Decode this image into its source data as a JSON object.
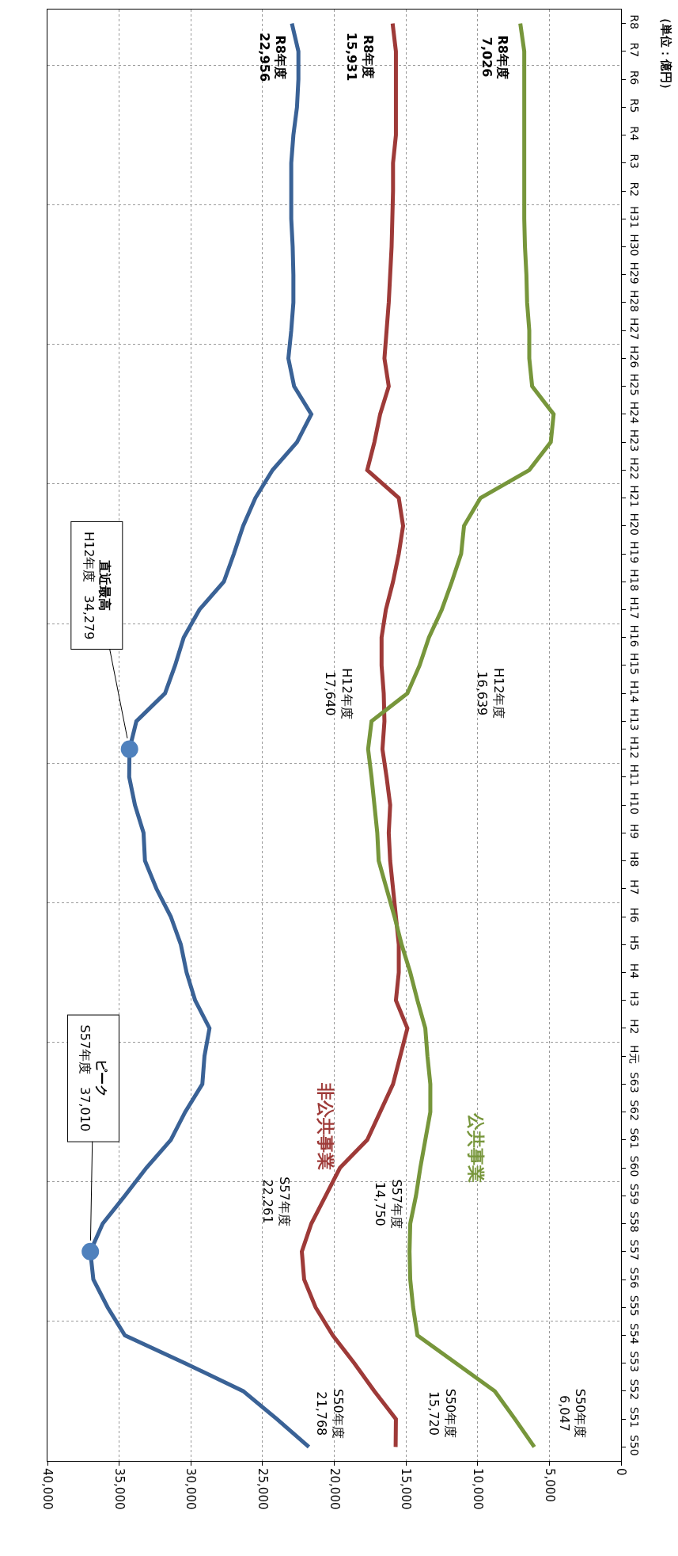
{
  "chart_data": {
    "type": "line",
    "orientation": "horizontal",
    "title": "（単位：億円）",
    "categories": [
      "R8",
      "R7",
      "R6",
      "R5",
      "R4",
      "R3",
      "R2",
      "H31",
      "H30",
      "H29",
      "H28",
      "H27",
      "H26",
      "H25",
      "H24",
      "H23",
      "H22",
      "H21",
      "H20",
      "H19",
      "H18",
      "H17",
      "H16",
      "H15",
      "H14",
      "H13",
      "H12",
      "H11",
      "H10",
      "H9",
      "H8",
      "H7",
      "H6",
      "H5",
      "H4",
      "H3",
      "H2",
      "H元",
      "S63",
      "S62",
      "S61",
      "S60",
      "S59",
      "S58",
      "S57",
      "S56",
      "S55",
      "S54",
      "S53",
      "S52",
      "S51",
      "S50"
    ],
    "xlim": [
      40000,
      0
    ],
    "xticks": [
      {
        "value": 40000,
        "label": "40,000"
      },
      {
        "value": 35000,
        "label": "35,000"
      },
      {
        "value": 30000,
        "label": "30,000"
      },
      {
        "value": 25000,
        "label": "25,000"
      },
      {
        "value": 20000,
        "label": "20,000"
      },
      {
        "value": 15000,
        "label": "15,000"
      },
      {
        "value": 10000,
        "label": "10,000"
      },
      {
        "value": 5000,
        "label": "5,000"
      },
      0
    ],
    "series": [
      {
        "color": "#3a6296",
        "values": [
          22956,
          22500,
          22500,
          22600,
          22850,
          23000,
          23000,
          23000,
          22900,
          22850,
          22850,
          23000,
          23200,
          22800,
          21600,
          22600,
          24300,
          25500,
          26350,
          27000,
          27700,
          29400,
          30500,
          31100,
          31800,
          33800,
          34279,
          34300,
          33900,
          33300,
          33200,
          32400,
          31400,
          30700,
          30300,
          29700,
          28700,
          29050,
          29200,
          30400,
          31400,
          33100,
          34600,
          36150,
          37010,
          36800,
          35800,
          34600,
          30400,
          26350,
          24000,
          21768
        ]
      },
      {
        "name": "非公共事業",
        "color": "#9e3a38",
        "values": [
          15931,
          15700,
          15700,
          15700,
          15700,
          15900,
          15900,
          15950,
          16000,
          16100,
          16200,
          16350,
          16500,
          16200,
          16800,
          17200,
          17700,
          15500,
          15200,
          15500,
          15900,
          16400,
          16700,
          16700,
          16550,
          16500,
          16639,
          16350,
          16100,
          16200,
          16100,
          15900,
          15700,
          15500,
          15500,
          15700,
          14900,
          15400,
          15900,
          16800,
          17700,
          19600,
          20600,
          21600,
          22261,
          22100,
          21300,
          20100,
          18600,
          17200,
          15700,
          15720
        ]
      },
      {
        "name": "公共事業",
        "color": "#77963b",
        "values": [
          7026,
          6750,
          6750,
          6750,
          6750,
          6750,
          6750,
          6750,
          6700,
          6600,
          6550,
          6400,
          6400,
          6200,
          4700,
          4900,
          6400,
          9800,
          10950,
          11150,
          11800,
          12500,
          13400,
          14050,
          14900,
          17400,
          17640,
          17400,
          17200,
          17000,
          16900,
          16350,
          15800,
          15300,
          14700,
          14200,
          13650,
          13500,
          13300,
          13300,
          13650,
          14000,
          14300,
          14700,
          14750,
          14700,
          14500,
          14200,
          11500,
          8800,
          7400,
          6047
        ]
      },
      {
        "type": "scatter",
        "marker": "circle",
        "color": "#4f81bd",
        "values": [
          null,
          null,
          null,
          null,
          null,
          null,
          null,
          null,
          null,
          null,
          null,
          null,
          null,
          null,
          null,
          null,
          null,
          null,
          null,
          null,
          null,
          null,
          null,
          null,
          null,
          null,
          34279,
          null,
          null,
          null,
          null,
          null,
          null,
          null,
          null,
          null,
          null,
          null,
          null,
          null,
          null,
          null,
          null,
          null,
          37010,
          null,
          null,
          null,
          null,
          null,
          null,
          null
        ]
      }
    ],
    "annotations": [
      "S50年度\n21,768",
      "S50年度\n15,720",
      "S50年度\n6,047",
      {
        "text": "ピーク\nS57年度　37,010",
        "x": 37010,
        "y": "S57"
      },
      "S57年度\n22,261",
      "S57年度\n14,750",
      {
        "text": "直近最高\nH12年度　34,279",
        "x": 34279,
        "y": "H12"
      },
      "H12年度\n17,640",
      "H12年度\n16,639",
      "R8年度\n22,956",
      "R8年度\n15,931",
      "R8年度\n7,026"
    ],
    "grid": true,
    "legend": false
  }
}
